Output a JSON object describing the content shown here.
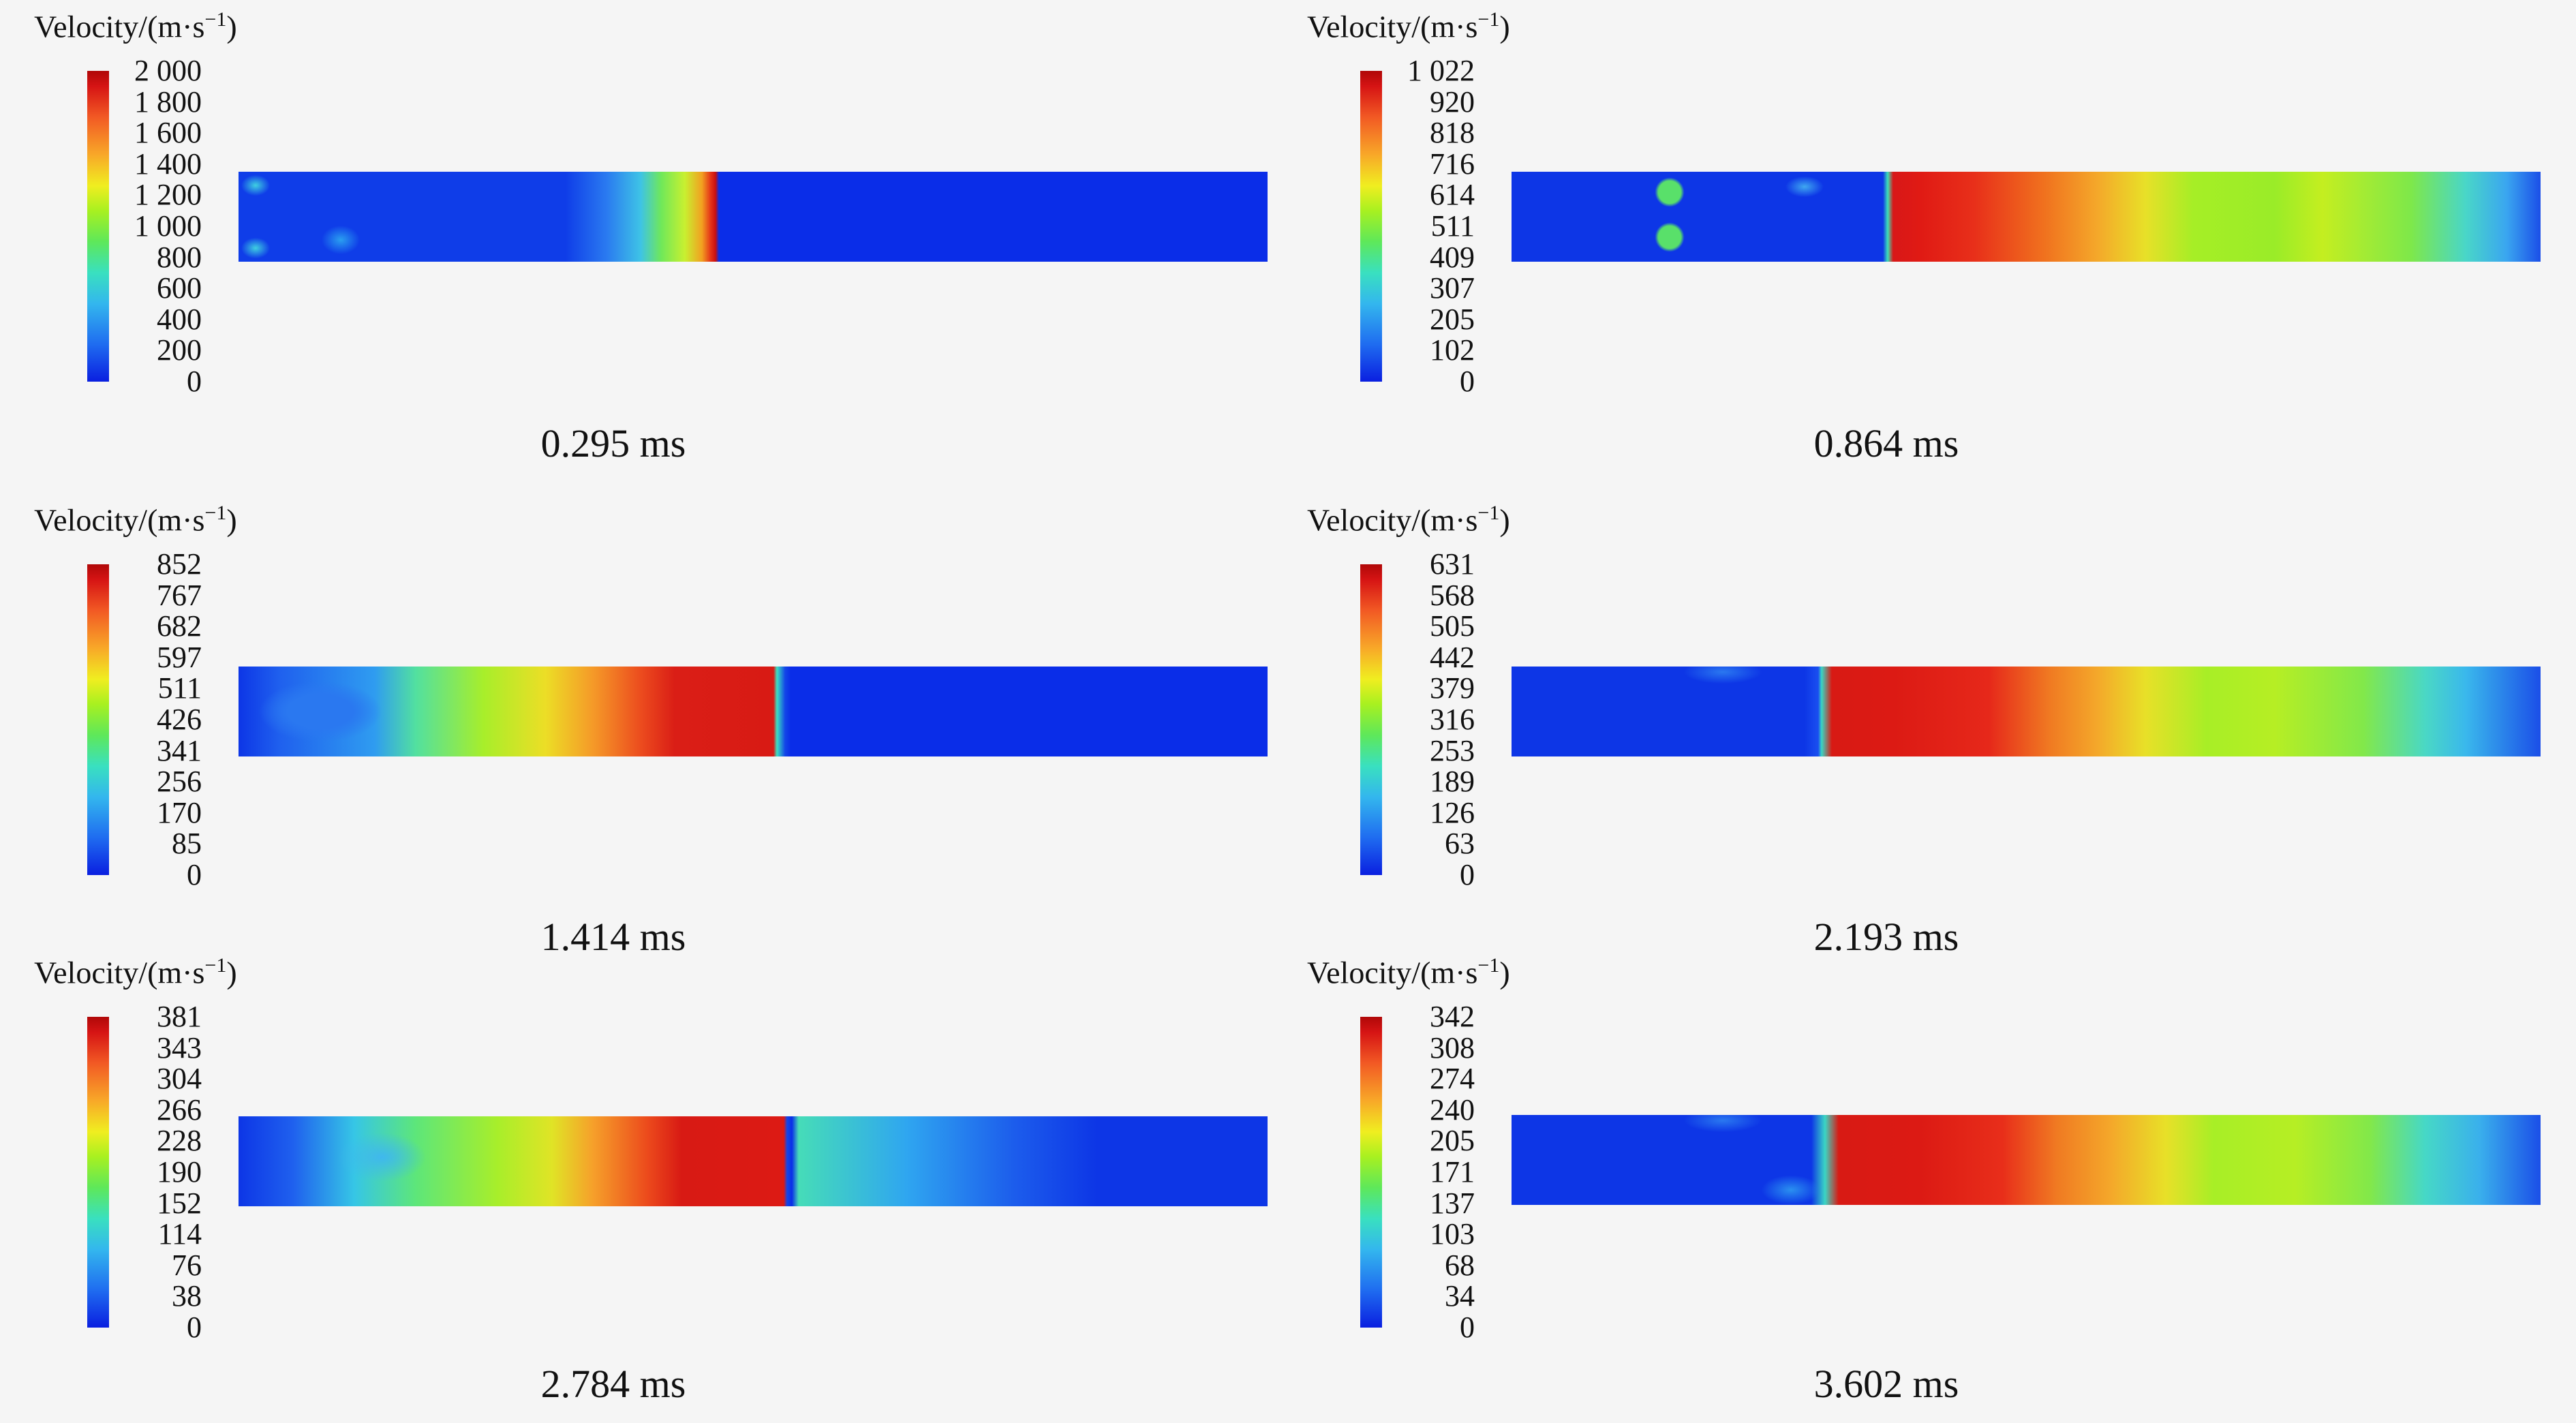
{
  "panels": [
    {
      "title": "Velocity/(m·s",
      "exp": "−1",
      "close": ")",
      "ticks": [
        "2 000",
        "1 800",
        "1 600",
        "1 400",
        "1 200",
        "1 000",
        "800",
        "600",
        "400",
        "200",
        "0"
      ],
      "time": "0.295 ms"
    },
    {
      "title": "Velocity/(m·s",
      "exp": "−1",
      "close": ")",
      "ticks": [
        "1 022",
        "920",
        "818",
        "716",
        "614",
        "511",
        "409",
        "307",
        "205",
        "102",
        "0"
      ],
      "time": "0.864 ms"
    },
    {
      "title": "Velocity/(m·s",
      "exp": "−1",
      "close": ")",
      "ticks": [
        "852",
        "767",
        "682",
        "597",
        "511",
        "426",
        "341",
        "256",
        "170",
        "85",
        "0"
      ],
      "time": "1.414 ms"
    },
    {
      "title": "Velocity/(m·s",
      "exp": "−1",
      "close": ")",
      "ticks": [
        "631",
        "568",
        "505",
        "442",
        "379",
        "316",
        "253",
        "189",
        "126",
        "63",
        "0"
      ],
      "time": "2.193 ms"
    },
    {
      "title": "Velocity/(m·s",
      "exp": "−1",
      "close": ")",
      "ticks": [
        "381",
        "343",
        "304",
        "266",
        "228",
        "190",
        "152",
        "114",
        "76",
        "38",
        "0"
      ],
      "time": "2.784 ms"
    },
    {
      "title": "Velocity/(m·s",
      "exp": "−1",
      "close": ")",
      "ticks": [
        "342",
        "308",
        "274",
        "240",
        "205",
        "171",
        "137",
        "103",
        "68",
        "34",
        "0"
      ],
      "time": "3.602 ms"
    }
  ]
}
